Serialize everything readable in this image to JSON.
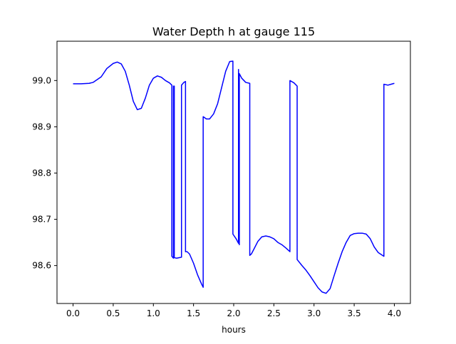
{
  "chart_data": {
    "type": "line",
    "title": "Water Depth h at gauge 115",
    "xlabel": "hours",
    "ylabel": "",
    "xlim": [
      -0.2,
      4.2
    ],
    "ylim": [
      98.518,
      99.085
    ],
    "x_ticks": [
      0.0,
      0.5,
      1.0,
      1.5,
      2.0,
      2.5,
      3.0,
      3.5,
      4.0
    ],
    "x_tick_labels": [
      "0.0",
      "0.5",
      "1.0",
      "1.5",
      "2.0",
      "2.5",
      "3.0",
      "3.5",
      "4.0"
    ],
    "y_ticks": [
      98.6,
      98.7,
      98.8,
      98.9,
      99.0
    ],
    "y_tick_labels": [
      "98.6",
      "98.7",
      "98.8",
      "98.9",
      "99.0"
    ],
    "grid": false,
    "legend": "none",
    "series": [
      {
        "color": "#0000ff",
        "x": [
          0.0,
          0.1,
          0.2,
          0.25,
          0.35,
          0.42,
          0.5,
          0.55,
          0.6,
          0.65,
          0.7,
          0.75,
          0.8,
          0.85,
          0.9,
          0.95,
          1.0,
          1.05,
          1.1,
          1.15,
          1.2,
          1.23,
          1.23,
          1.25,
          1.25,
          1.26,
          1.26,
          1.29,
          1.35,
          1.35,
          1.38,
          1.4,
          1.4,
          1.42,
          1.45,
          1.5,
          1.55,
          1.6,
          1.62,
          1.62,
          1.66,
          1.7,
          1.75,
          1.8,
          1.85,
          1.9,
          1.95,
          1.99,
          1.99,
          2.03,
          2.06,
          2.06,
          2.07,
          2.07,
          2.1,
          2.15,
          2.2,
          2.2,
          2.22,
          2.25,
          2.3,
          2.35,
          2.4,
          2.45,
          2.5,
          2.55,
          2.6,
          2.65,
          2.7,
          2.7,
          2.75,
          2.79,
          2.79,
          2.85,
          2.9,
          2.95,
          3.0,
          3.05,
          3.1,
          3.15,
          3.2,
          3.25,
          3.3,
          3.35,
          3.4,
          3.45,
          3.5,
          3.55,
          3.6,
          3.65,
          3.7,
          3.75,
          3.8,
          3.87,
          3.87,
          3.92,
          3.96,
          4.0
        ],
        "y": [
          98.993,
          98.993,
          98.994,
          98.996,
          99.008,
          99.026,
          99.037,
          99.04,
          99.036,
          99.02,
          98.99,
          98.955,
          98.937,
          98.94,
          98.962,
          98.99,
          99.005,
          99.01,
          99.007,
          99.0,
          98.995,
          98.99,
          98.62,
          98.616,
          98.988,
          98.988,
          98.617,
          98.616,
          98.618,
          98.99,
          98.996,
          98.998,
          98.63,
          98.63,
          98.625,
          98.605,
          98.58,
          98.56,
          98.553,
          98.922,
          98.917,
          98.917,
          98.928,
          98.95,
          98.985,
          99.02,
          99.041,
          99.042,
          98.668,
          98.658,
          98.648,
          99.024,
          98.645,
          99.015,
          99.005,
          98.996,
          98.994,
          98.622,
          98.625,
          98.635,
          98.652,
          98.662,
          98.664,
          98.662,
          98.658,
          98.65,
          98.645,
          98.638,
          98.63,
          99.0,
          98.995,
          98.988,
          98.613,
          98.6,
          98.59,
          98.578,
          98.565,
          98.552,
          98.543,
          98.54,
          98.55,
          98.578,
          98.605,
          98.63,
          98.65,
          98.665,
          98.669,
          98.67,
          98.67,
          98.668,
          98.658,
          98.64,
          98.628,
          98.62,
          98.992,
          98.99,
          98.992,
          98.994
        ]
      }
    ]
  }
}
